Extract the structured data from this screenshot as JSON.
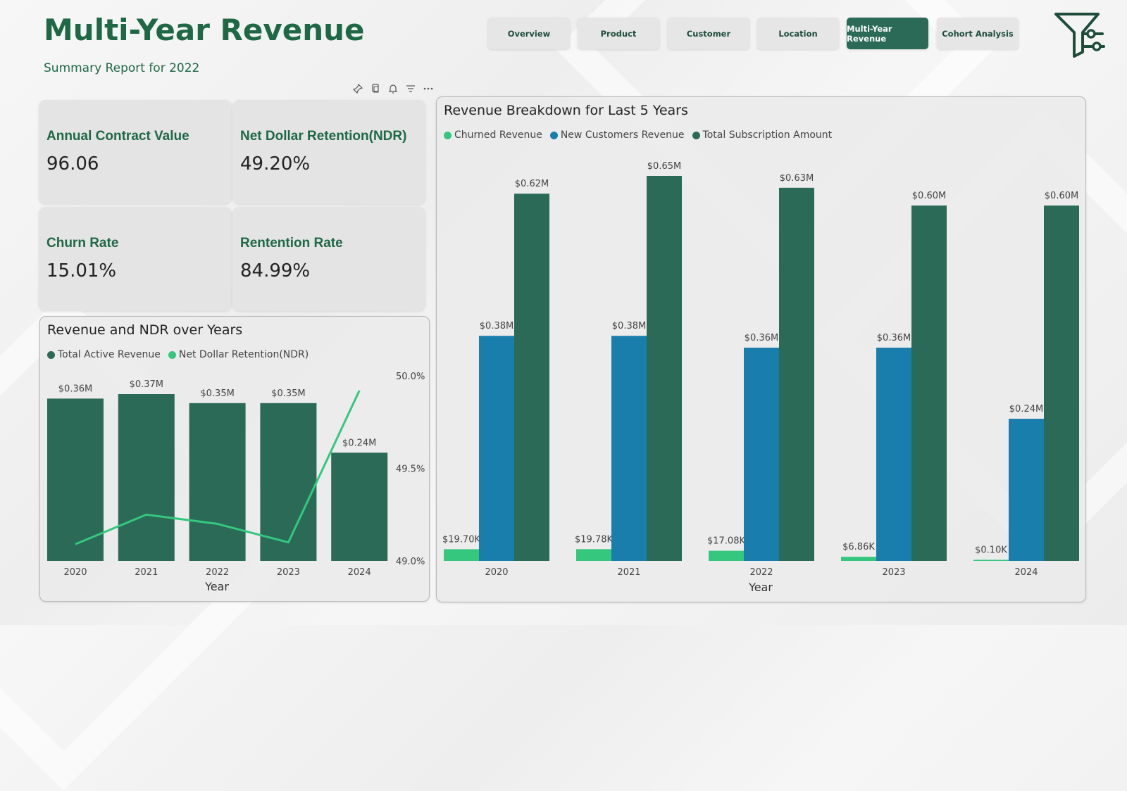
{
  "header": {
    "title": "Multi-Year Revenue",
    "subtitle": "Summary Report for 2022"
  },
  "nav": {
    "tabs": [
      {
        "label": "Overview",
        "active": false
      },
      {
        "label": "Product",
        "active": false
      },
      {
        "label": "Customer",
        "active": false
      },
      {
        "label": "Location",
        "active": false
      },
      {
        "label": "Multi-Year Revenue",
        "active": true
      },
      {
        "label": "Cohort Analysis",
        "active": false
      }
    ]
  },
  "toolbar": {
    "icons": [
      "pin-icon",
      "copy-icon",
      "bell-icon",
      "filter-lines-icon",
      "more-icon"
    ]
  },
  "kpis": [
    {
      "label": "Annual Contract Value",
      "value": "96.06"
    },
    {
      "label": "Net Dollar Retention(NDR)",
      "value": "49.20%"
    },
    {
      "label": "Churn Rate",
      "value": "15.01%"
    },
    {
      "label": "Rentention Rate",
      "value": "84.99%"
    }
  ],
  "colors": {
    "brand_green": "#1f6845",
    "dark_teal": "#2a6a57",
    "bright_green": "#35c77e",
    "blue": "#1a7ead"
  },
  "charts": {
    "ndr": {
      "title": "Revenue and NDR over Years",
      "legend": [
        "Total Active Revenue",
        "Net Dollar Retention(NDR)"
      ]
    },
    "breakdown": {
      "title": "Revenue Breakdown for Last 5 Years",
      "legend": [
        "Churned Revenue",
        "New Customers Revenue",
        "Total Subscription Amount"
      ]
    }
  },
  "chart_data": [
    {
      "type": "bar",
      "title": "Revenue and NDR over Years",
      "xlabel": "Year",
      "categories": [
        "2020",
        "2021",
        "2022",
        "2023",
        "2024"
      ],
      "series": [
        {
          "name": "Total Active Revenue",
          "type": "bar",
          "values": [
            0.36,
            0.37,
            0.35,
            0.35,
            0.24
          ],
          "labels": [
            "$0.36M",
            "$0.37M",
            "$0.35M",
            "$0.35M",
            "$0.24M"
          ]
        },
        {
          "name": "Net Dollar Retention(NDR)",
          "type": "line",
          "axis": "secondary",
          "values": [
            49.09,
            49.25,
            49.2,
            49.1,
            49.92
          ]
        }
      ],
      "ylim": [
        0,
        0.37
      ],
      "y2lim": [
        49.0,
        50.0
      ],
      "y2ticks": [
        "49.0%",
        "49.5%",
        "50.0%"
      ]
    },
    {
      "type": "bar",
      "title": "Revenue Breakdown for Last 5 Years",
      "xlabel": "Year",
      "categories": [
        "2020",
        "2021",
        "2022",
        "2023",
        "2024"
      ],
      "series": [
        {
          "name": "Churned Revenue",
          "values": [
            0.0197,
            0.01978,
            0.01708,
            0.00686,
            0.0001
          ],
          "labels": [
            "$19.70K",
            "$19.78K",
            "$17.08K",
            "$6.86K",
            "$0.10K"
          ]
        },
        {
          "name": "New Customers Revenue",
          "values": [
            0.38,
            0.38,
            0.36,
            0.36,
            0.24
          ],
          "labels": [
            "$0.38M",
            "$0.38M",
            "$0.36M",
            "$0.36M",
            "$0.24M"
          ]
        },
        {
          "name": "Total Subscription Amount",
          "values": [
            0.62,
            0.65,
            0.63,
            0.6,
            0.6
          ],
          "labels": [
            "$0.62M",
            "$0.65M",
            "$0.63M",
            "$0.60M",
            "$0.60M"
          ]
        }
      ],
      "ylim": [
        0,
        0.65
      ]
    }
  ]
}
